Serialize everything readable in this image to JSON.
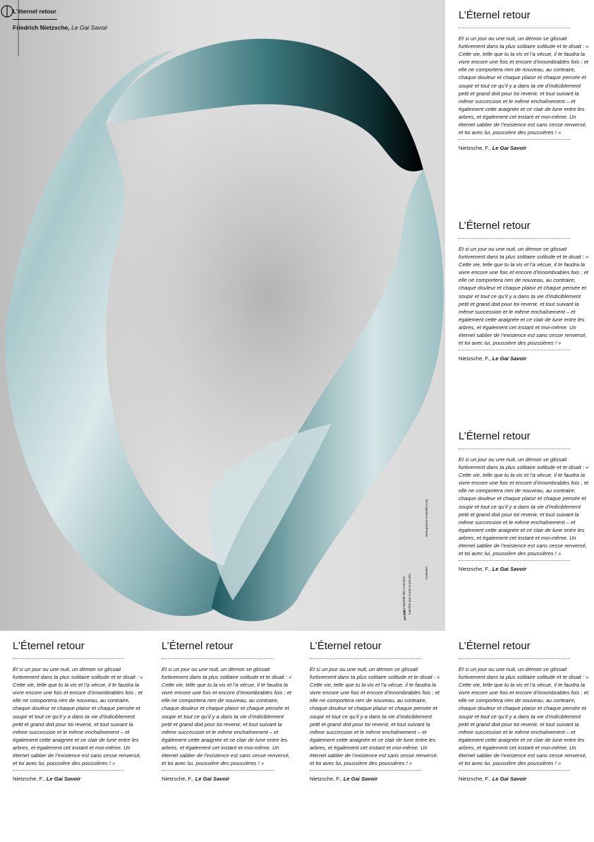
{
  "hero": {
    "title": "L’éternel retour",
    "author": "Friedrich Nietzsche,",
    "work": "Le Gai Savoir",
    "vertical_left": "encyclopédie des concepts",
    "vertical_mid": "marcher pas à pas la pensée",
    "vertical_right": "www.penser-essentiel.com",
    "vertical_sep": "essentiel",
    "brand": "penser"
  },
  "card": {
    "title": "L’Éternel retour",
    "quote": "Et si un jour ou une nuit, un démon se glissait furtivement dans ta plus solitaire solitude et te disait : « Cette vie, telle que tu la vis et l’a vécue, il te faudra la vivre encore une fois et encore d’innombrables fois ; et elle ne comportera rien de nouveau, au contraire, chaque douleur et chaque plaisir et chaque pensée et soupir et tout ce qu’il y a dans ta vie d’indiciblement petit et grand doit pour toi revenir, et tout suivant la même succession et le même enchaînement – et également cette araignée et ce clair de lune entre les arbres, et également cet instant et moi-même. Un éternel sablier de l’existence est sans cesse renversé, et toi avec lui, poussière des poussières ! »",
    "cite_author": "Nietzsche, F.,",
    "cite_work": "Le Gai Savoir"
  }
}
